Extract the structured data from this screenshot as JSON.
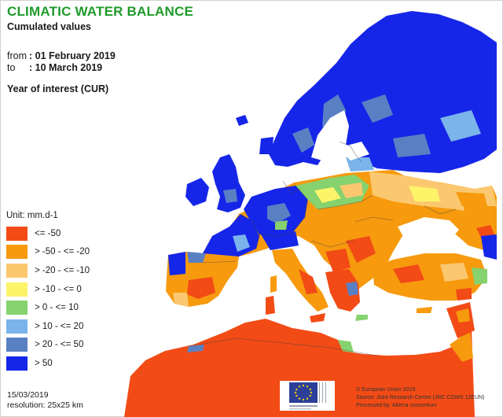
{
  "title": "CLIMATIC WATER BALANCE",
  "subtitle": "Cumulated values",
  "period": {
    "from_label": "from",
    "from_value": ": 01 February 2019",
    "to_label": "to",
    "to_value": ": 10 March 2019"
  },
  "year_of_interest": "Year of interest (CUR)",
  "legend": {
    "unit": "Unit:  mm.d-1",
    "items": [
      {
        "label": "<= -50",
        "color": "#f24b16"
      },
      {
        "label": "> -50 - <= -20",
        "color": "#f79a0e"
      },
      {
        "label": "> -20 - <= -10",
        "color": "#fbc870"
      },
      {
        "label": "> -10 - <= 0",
        "color": "#fdf46a"
      },
      {
        "label": "> 0 - <= 10",
        "color": "#86d26e"
      },
      {
        "label": "> 10 - <= 20",
        "color": "#7ab4ea"
      },
      {
        "label": "> 20 - <= 50",
        "color": "#5a80c4"
      },
      {
        "label": "> 50",
        "color": "#1626e8"
      }
    ]
  },
  "footer": {
    "date": "15/03/2019",
    "resolution": "resolution:  25x25 km"
  },
  "credits": {
    "line1": "© European Union 2019",
    "line2": "Source: Joint Research Centre (JRC CGMS 12EUN)",
    "line3": "Processed by: Alterra consortium"
  },
  "colors": {
    "title": "#1e9a2a",
    "sea": "#ffffff",
    "eu_flag": "#2b3f99"
  }
}
